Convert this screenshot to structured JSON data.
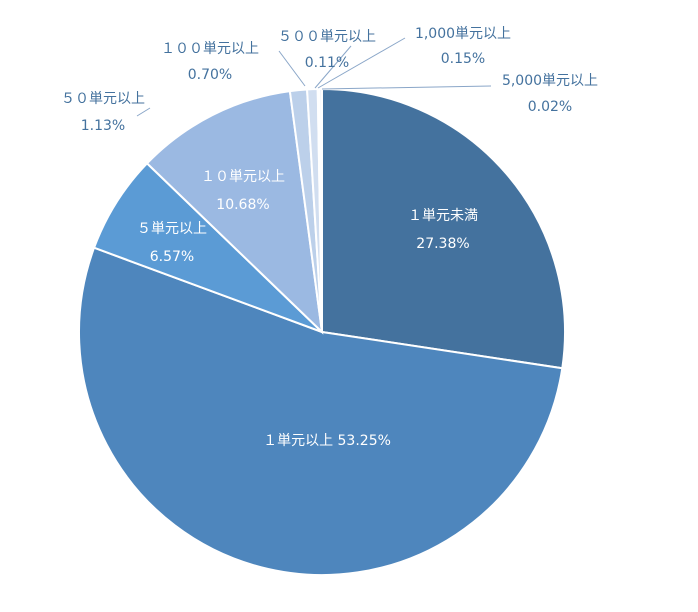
{
  "chart_data": {
    "type": "pie",
    "title": "",
    "start": "12 o'clock",
    "direction": "clockwise",
    "slices": [
      {
        "label": "１単元未満",
        "pct_text": "27.38%",
        "value": 27.38,
        "color": "#44729e",
        "label_inside": true,
        "label_color": "#ffffff"
      },
      {
        "label": "１単元以上",
        "pct_text": "53.25%",
        "value": 53.25,
        "color": "#4e86bd",
        "label_inside": true,
        "label_color": "#ffffff"
      },
      {
        "label": "５単元以上",
        "pct_text": "6.57%",
        "value": 6.57,
        "color": "#5b9bd5",
        "label_inside": true,
        "label_color": "#ffffff"
      },
      {
        "label": "１０単元以上",
        "pct_text": "10.68%",
        "value": 10.68,
        "color": "#9bb9e2",
        "label_inside": true,
        "label_color": "#ffffff"
      },
      {
        "label": "５０単元以上",
        "pct_text": "1.13%",
        "value": 1.13,
        "color": "#bcd0ea",
        "label_inside": false,
        "label_color": "#44729e"
      },
      {
        "label": "１００単元以上",
        "pct_text": "0.70%",
        "value": 0.7,
        "color": "#d1def0",
        "label_inside": false,
        "label_color": "#44729e"
      },
      {
        "label": "５００単元以上",
        "pct_text": "0.11%",
        "value": 0.11,
        "color": "#c3d4ea",
        "label_inside": false,
        "label_color": "#44729e"
      },
      {
        "label": "1,000単元以上",
        "pct_text": "0.15%",
        "value": 0.15,
        "color": "#a8c2e4",
        "label_inside": false,
        "label_color": "#44729e"
      },
      {
        "label": "5,000単元以上",
        "pct_text": "0.02%",
        "value": 0.02,
        "color": "#7fa6d4",
        "label_inside": false,
        "label_color": "#44729e"
      }
    ]
  }
}
